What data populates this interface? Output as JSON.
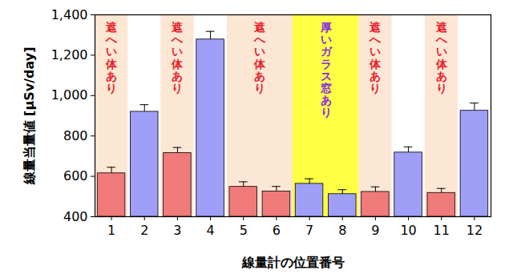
{
  "chart_data": {
    "type": "bar",
    "categories": [
      "1",
      "2",
      "3",
      "4",
      "5",
      "6",
      "7",
      "8",
      "9",
      "10",
      "11",
      "12"
    ],
    "values": [
      615,
      920,
      715,
      1278,
      548,
      525,
      563,
      512,
      523,
      718,
      518,
      925
    ],
    "errors": [
      30,
      35,
      28,
      40,
      25,
      25,
      25,
      22,
      25,
      28,
      22,
      38
    ],
    "colors": [
      "#f07a7a",
      "#9f9ff8",
      "#f07a7a",
      "#9f9ff8",
      "#f07a7a",
      "#f07a7a",
      "#9f9ff8",
      "#9f9ff8",
      "#f07a7a",
      "#9f9ff8",
      "#f07a7a",
      "#9f9ff8"
    ],
    "x_label": "線量計の位置番号",
    "y_label": "線量当量値 [μSv/day]",
    "ylim": [
      400,
      1400
    ],
    "yticks": [
      400,
      600,
      800,
      1000,
      1200,
      1400
    ],
    "regions": [
      {
        "text": "遮へい体あり",
        "categories": [
          "1"
        ],
        "color": "#fce6d4",
        "text_color": "#e8202a"
      },
      {
        "text": "遮へい体あり",
        "categories": [
          "3"
        ],
        "color": "#fce6d4",
        "text_color": "#e8202a"
      },
      {
        "text": "遮へい体あり",
        "categories": [
          "5",
          "6"
        ],
        "color": "#fce6d4",
        "text_color": "#e8202a"
      },
      {
        "text": "厚いガラス窓あり",
        "categories": [
          "7",
          "8"
        ],
        "color": "#ffff44",
        "text_color": "#8a2be2"
      },
      {
        "text": "遮へい体あり",
        "categories": [
          "9"
        ],
        "color": "#fce6d4",
        "text_color": "#e8202a"
      },
      {
        "text": "遮へい体あり",
        "categories": [
          "11"
        ],
        "color": "#fce6d4",
        "text_color": "#e8202a"
      }
    ]
  }
}
